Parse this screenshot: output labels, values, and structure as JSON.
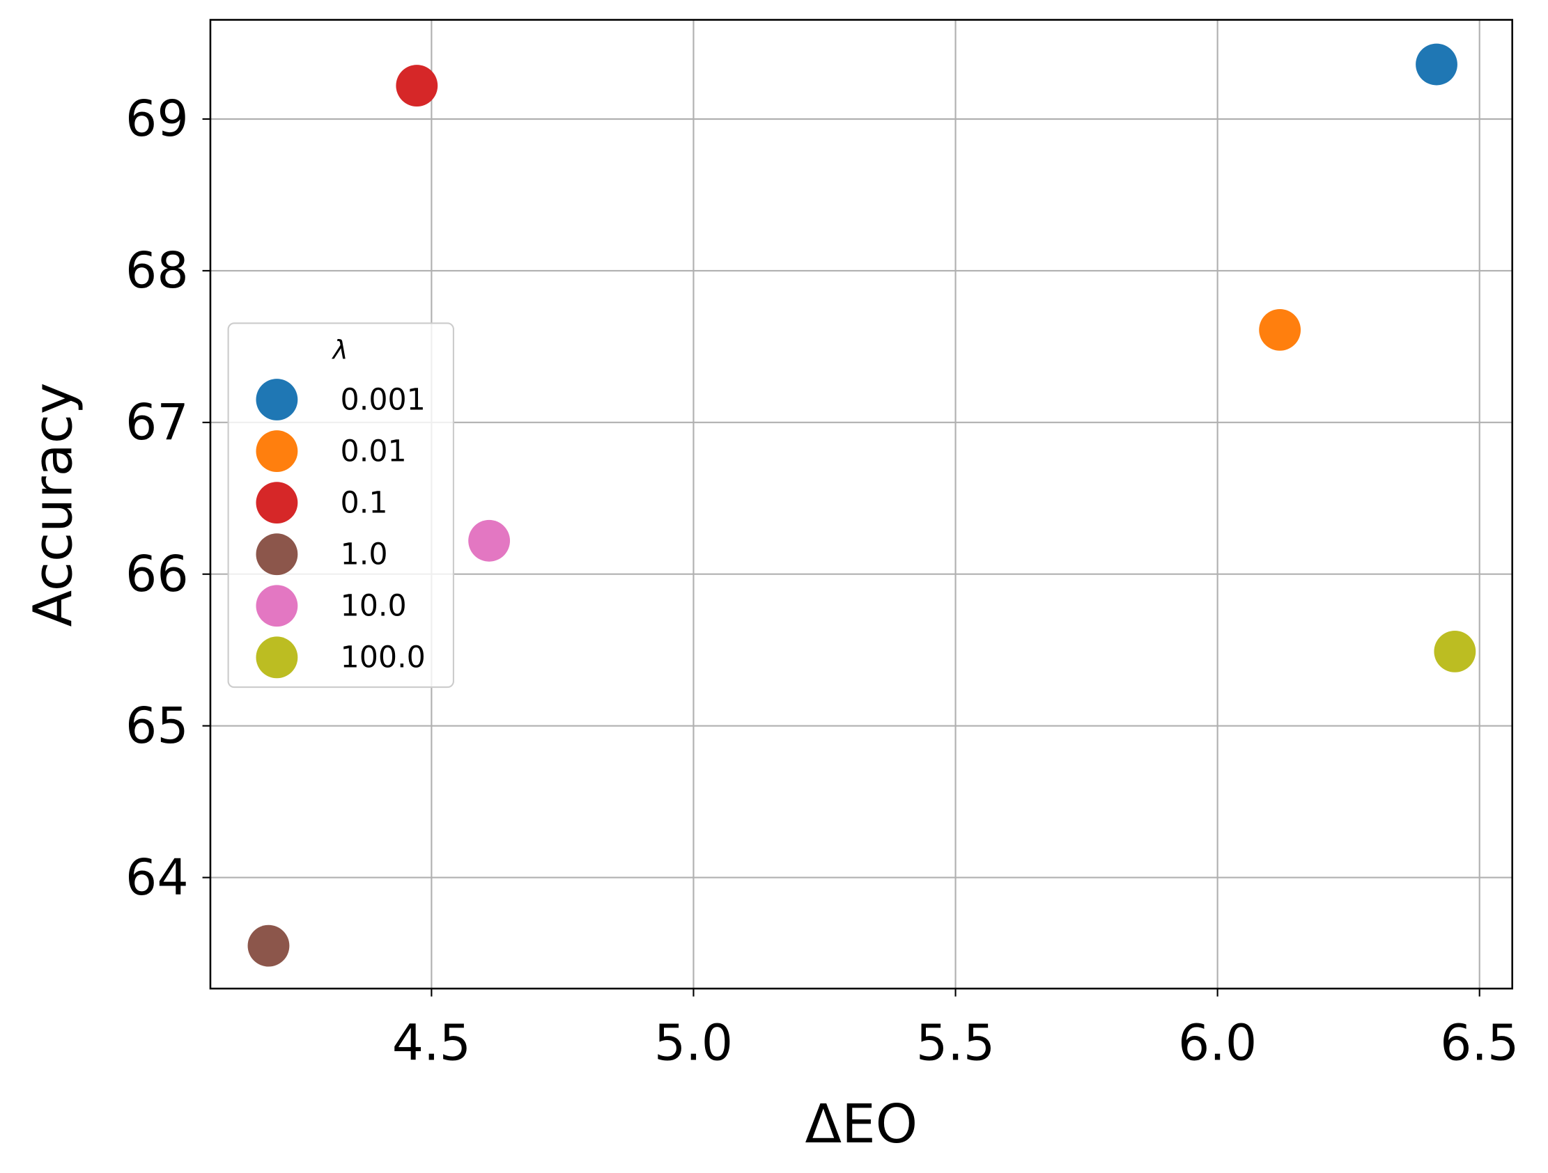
{
  "chart_data": {
    "type": "scatter",
    "xlabel": "ΔEO",
    "ylabel": "Accuracy",
    "legend_title": "λ",
    "legend_loc": "center left",
    "grid": true,
    "xlim": [
      4.078,
      6.5625
    ],
    "ylim": [
      63.268,
      69.654
    ],
    "xticks": [
      4.5,
      {
        "value": 5,
        "label": "5.0"
      },
      5.5,
      {
        "value": 6,
        "label": "6.0"
      },
      6.5
    ],
    "yticks": [
      64,
      65,
      66,
      67,
      68,
      69
    ],
    "series": [
      {
        "name": "0.001",
        "color": "#1f77b4",
        "x": [
          6.418
        ],
        "y": [
          69.36
        ]
      },
      {
        "name": "0.01",
        "color": "#ff7f0e",
        "x": [
          6.119
        ],
        "y": [
          67.61
        ]
      },
      {
        "name": "0.1",
        "color": "#d62728",
        "x": [
          4.472
        ],
        "y": [
          69.22
        ]
      },
      {
        "name": "1.0",
        "color": "#8c564b",
        "x": [
          4.189
        ],
        "y": [
          63.55
        ]
      },
      {
        "name": "10.0",
        "color": "#e377c2",
        "x": [
          4.61
        ],
        "y": [
          66.22
        ]
      },
      {
        "name": "100.0",
        "color": "#bcbd22",
        "x": [
          6.453
        ],
        "y": [
          65.49
        ]
      }
    ]
  }
}
